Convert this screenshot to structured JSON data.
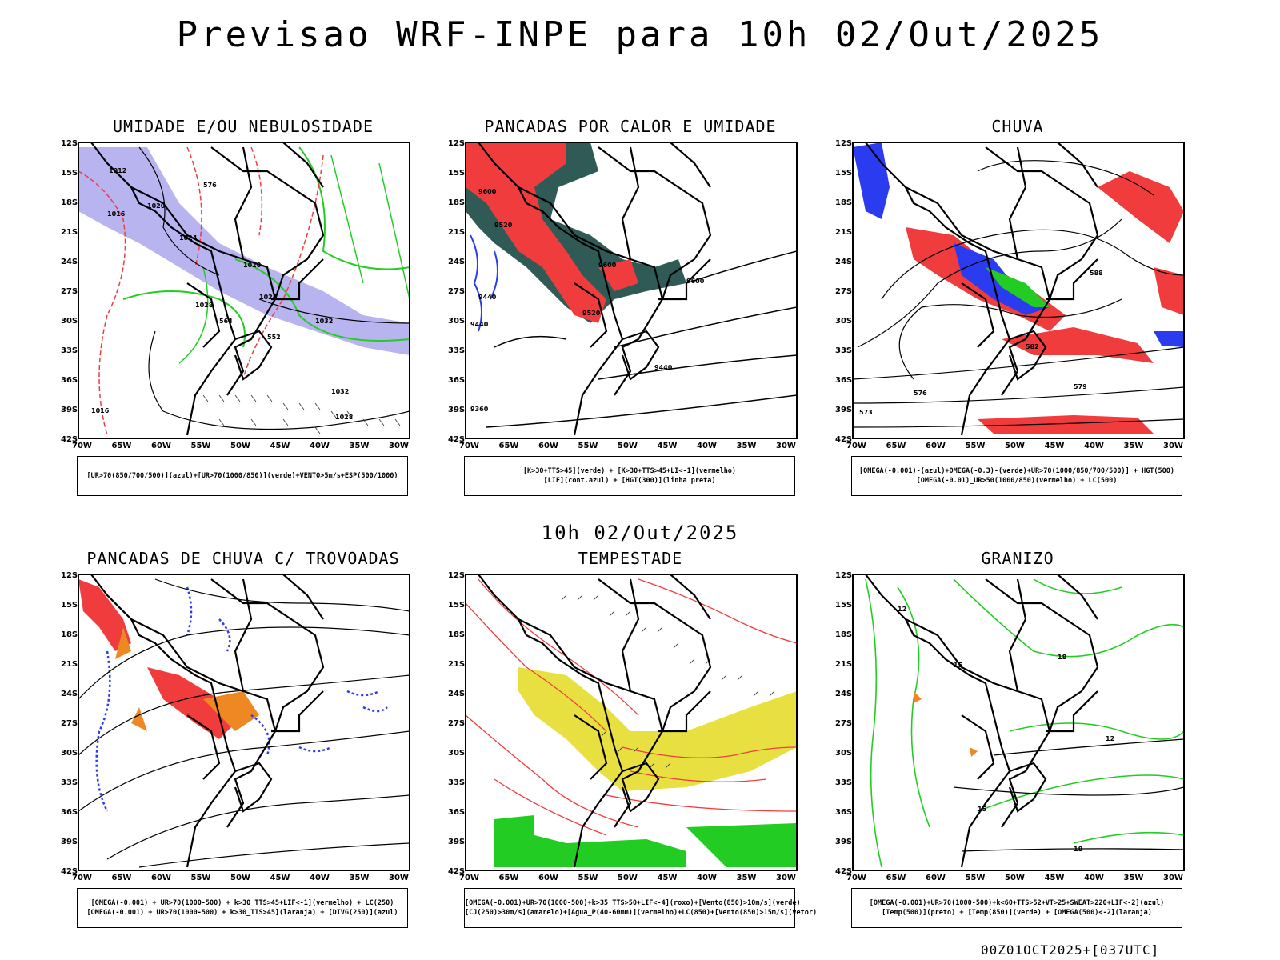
{
  "header": {
    "title": "Previsao WRF-INPE  para 10h 02/Out/2025",
    "subtitle": "10h 02/Out/2025",
    "footer": "00Z01OCT2025+[037UTC]"
  },
  "axes": {
    "lat_labels": [
      "12S",
      "15S",
      "18S",
      "21S",
      "24S",
      "27S",
      "30S",
      "33S",
      "36S",
      "39S",
      "42S"
    ],
    "lon_labels": [
      "70W",
      "65W",
      "60W",
      "55W",
      "50W",
      "45W",
      "40W",
      "35W",
      "30W"
    ]
  },
  "colors": {
    "blue": "#2b3cf0",
    "green": "#22cc22",
    "red": "#f03c3c",
    "lavender": "#b8b4f0",
    "darkteal": "#2f5a56",
    "orange": "#ee8822",
    "yellow": "#e8e040",
    "black": "#000000"
  },
  "panels": [
    {
      "title": "UMIDADE E/OU NEBULOSIDADE",
      "legend": [
        "[UR>70(850/700/500)](azul)+[UR>70(1000/850)](verde)+VENTO>5m/s+ESP(500/1000)"
      ],
      "contour_labels": [
        "1012",
        "1016",
        "1020",
        "1024",
        "1028",
        "1032",
        "1020",
        "1024",
        "576",
        "564",
        "552",
        "1016",
        "1032",
        "1028"
      ]
    },
    {
      "title": "PANCADAS POR CALOR E UMIDADE",
      "legend": [
        "[K>30+TTS>45](verde) + [K>30+TTS>45+LI<-1](vermelho)",
        "[LIF](cont.azul) + [HGT(300)](linha preta)"
      ],
      "contour_labels": [
        "9600",
        "9520",
        "9600",
        "9440",
        "9520",
        "9440",
        "9600",
        "9440",
        "9360"
      ]
    },
    {
      "title": "CHUVA",
      "legend": [
        "[OMEGA(-0.001)-(azul)+OMEGA(-0.3)-(verde)+UR>70(1000/850/700/500)] + HGT(500)",
        "[OMEGA(-0.01)_UR>50(1000/850)(vermelho) + LC(500)"
      ],
      "contour_labels": [
        "588",
        "582",
        "579",
        "576",
        "573"
      ]
    },
    {
      "title": "PANCADAS DE CHUVA C/ TROVOADAS",
      "legend": [
        "[OMEGA(-0.001) + UR>70(1000-500) + k>30_TTS>45+LIF<-1](vermelho) + LC(250)",
        "[OMEGA(-0.001) + UR>70(1000-500) + k>30_TTS>45](laranja) + [DIVG(250)](azul)"
      ],
      "contour_labels": []
    },
    {
      "title": "TEMPESTADE",
      "legend": [
        "[OMEGA(-0.001)+UR>70(1000-500)+k>35_TTS>50+LIF<-4](roxo)+[Vento(850)>10m/s](verde)",
        "[CJ(250)>30m/s](amarelo)+[Agua_P(40-60mm)](vermelho)+LC(850)+[Vento(850)>15m/s](vetor)"
      ],
      "contour_labels": []
    },
    {
      "title": "GRANIZO",
      "legend": [
        "[OMEGA(-0.001)+UR>70(1000-500)+k<60+TTS>52+VT>25+SWEAT>220+LIF<-2](azul)",
        "[Temp(500)](preto) + [Temp(850)](verde) + [OMEGA(500)<-2](laranja)"
      ],
      "contour_labels": [
        "12",
        "15",
        "18",
        "12",
        "15",
        "18"
      ]
    }
  ]
}
